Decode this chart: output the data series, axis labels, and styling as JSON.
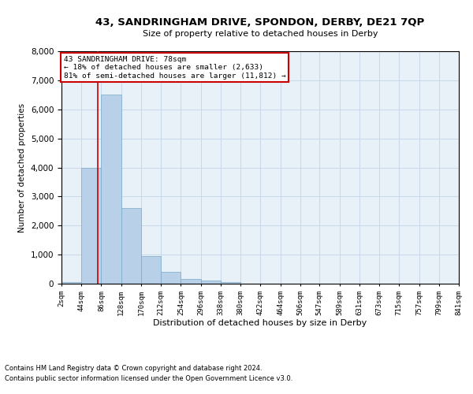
{
  "title_line1": "43, SANDRINGHAM DRIVE, SPONDON, DERBY, DE21 7QP",
  "title_line2": "Size of property relative to detached houses in Derby",
  "xlabel": "Distribution of detached houses by size in Derby",
  "ylabel": "Number of detached properties",
  "annotation_title": "43 SANDRINGHAM DRIVE: 78sqm",
  "annotation_line2": "← 18% of detached houses are smaller (2,633)",
  "annotation_line3": "81% of semi-detached houses are larger (11,812) →",
  "footer_line1": "Contains HM Land Registry data © Crown copyright and database right 2024.",
  "footer_line2": "Contains public sector information licensed under the Open Government Licence v3.0.",
  "bin_edges": [
    2,
    44,
    86,
    128,
    170,
    212,
    254,
    296,
    338,
    380,
    422,
    464,
    506,
    547,
    589,
    631,
    673,
    715,
    757,
    799,
    841
  ],
  "bar_heights": [
    50,
    4000,
    6500,
    2600,
    950,
    400,
    150,
    100,
    50,
    10,
    5,
    0,
    0,
    0,
    0,
    0,
    0,
    0,
    0,
    0
  ],
  "bar_color": "#b8d0e8",
  "bar_edge_color": "#7aaac8",
  "property_size": 78,
  "vline_color": "#cc0000",
  "annotation_box_color": "#cc0000",
  "grid_color": "#c8d8ea",
  "background_color": "#e8f0f8",
  "ylim": [
    0,
    8000
  ],
  "yticks": [
    0,
    1000,
    2000,
    3000,
    4000,
    5000,
    6000,
    7000,
    8000
  ]
}
